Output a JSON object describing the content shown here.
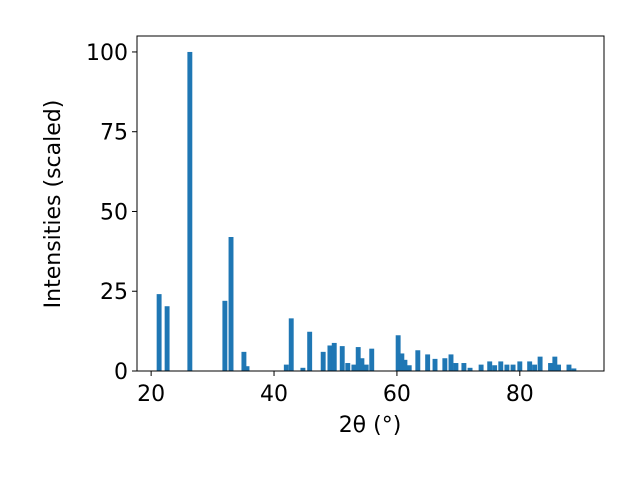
{
  "chart_data": {
    "type": "bar",
    "xlabel": "2θ (°)",
    "ylabel": "Intensities (scaled)",
    "color": "#1f77b4",
    "x": [
      21.3,
      22.6,
      26.3,
      32.0,
      33.0,
      35.1,
      35.6,
      42.0,
      42.8,
      44.7,
      45.8,
      48.0,
      49.1,
      49.8,
      51.1,
      52.0,
      53.0,
      53.7,
      54.3,
      55.0,
      55.9,
      60.2,
      60.8,
      61.3,
      62.0,
      63.4,
      65.0,
      66.2,
      67.8,
      68.8,
      69.6,
      70.9,
      71.9,
      73.7,
      75.1,
      75.9,
      76.9,
      77.9,
      78.9,
      80.0,
      81.6,
      82.4,
      83.3,
      85.0,
      85.7,
      86.3,
      88.0,
      88.8
    ],
    "values": [
      24.1,
      20.3,
      100,
      22,
      42,
      6,
      1.5,
      2,
      16.5,
      1,
      12.3,
      6,
      8,
      8.8,
      7.8,
      2.5,
      2,
      7.5,
      4,
      2,
      7,
      11.2,
      5.5,
      3.5,
      1.8,
      6.5,
      5.2,
      3.8,
      4,
      5.2,
      2.5,
      2.5,
      1,
      2,
      3,
      1.8,
      3,
      2,
      2,
      3,
      3,
      2,
      4.5,
      2.5,
      4.5,
      2,
      2,
      0.8
    ],
    "xlim": [
      17.7,
      93.7
    ],
    "ylim": [
      0,
      105
    ],
    "xticks": [
      20,
      40,
      60,
      80
    ],
    "yticks": [
      0,
      25,
      50,
      75,
      100
    ],
    "grid": false
  }
}
